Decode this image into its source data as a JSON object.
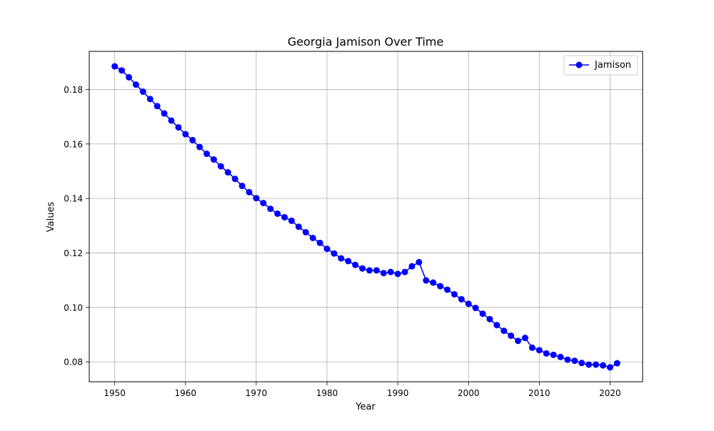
{
  "chart_data": {
    "type": "line",
    "title": "Georgia Jamison Over Time",
    "xlabel": "Year",
    "ylabel": "Values",
    "xlim": [
      1946.4,
      2024.6
    ],
    "ylim": [
      0.0727,
      0.194
    ],
    "x_ticks": [
      1950,
      1960,
      1970,
      1980,
      1990,
      2000,
      2010,
      2020
    ],
    "y_ticks": [
      0.08,
      0.1,
      0.12,
      0.14,
      0.16,
      0.18
    ],
    "x_tick_labels": [
      "1950",
      "1960",
      "1970",
      "1980",
      "1990",
      "2000",
      "2010",
      "2020"
    ],
    "y_tick_labels": [
      "0.08",
      "0.10",
      "0.12",
      "0.14",
      "0.16",
      "0.18"
    ],
    "grid": true,
    "legend_position": "top-right",
    "series": [
      {
        "name": "Jamison",
        "color": "#0000ff",
        "marker": "circle",
        "x": [
          1950,
          1951,
          1952,
          1953,
          1954,
          1955,
          1956,
          1957,
          1958,
          1959,
          1960,
          1961,
          1962,
          1963,
          1964,
          1965,
          1966,
          1967,
          1968,
          1969,
          1970,
          1971,
          1972,
          1973,
          1974,
          1975,
          1976,
          1977,
          1978,
          1979,
          1980,
          1981,
          1982,
          1983,
          1984,
          1985,
          1986,
          1987,
          1988,
          1989,
          1990,
          1991,
          1992,
          1993,
          1994,
          1995,
          1996,
          1997,
          1998,
          1999,
          2000,
          2001,
          2002,
          2003,
          2004,
          2005,
          2006,
          2007,
          2008,
          2009,
          2010,
          2011,
          2012,
          2013,
          2014,
          2015,
          2016,
          2017,
          2018,
          2019,
          2020,
          2021
        ],
        "y": [
          0.1885,
          0.187,
          0.1845,
          0.1818,
          0.1792,
          0.1765,
          0.1739,
          0.1712,
          0.1686,
          0.1661,
          0.1636,
          0.1614,
          0.1589,
          0.1564,
          0.1543,
          0.1518,
          0.1496,
          0.1472,
          0.1446,
          0.1423,
          0.1401,
          0.1383,
          0.1362,
          0.1344,
          0.1331,
          0.1318,
          0.1296,
          0.1276,
          0.1255,
          0.1237,
          0.1215,
          0.1198,
          0.118,
          0.117,
          0.1156,
          0.1143,
          0.1136,
          0.1136,
          0.1126,
          0.113,
          0.1123,
          0.113,
          0.1151,
          0.1166,
          0.1099,
          0.1091,
          0.1078,
          0.1065,
          0.1048,
          0.103,
          0.1013,
          0.0998,
          0.0977,
          0.0957,
          0.0935,
          0.0914,
          0.0896,
          0.0877,
          0.0888,
          0.0852,
          0.0843,
          0.0831,
          0.0826,
          0.0818,
          0.0808,
          0.0804,
          0.0796,
          0.079,
          0.079,
          0.0787,
          0.078,
          0.0795
        ]
      }
    ]
  }
}
